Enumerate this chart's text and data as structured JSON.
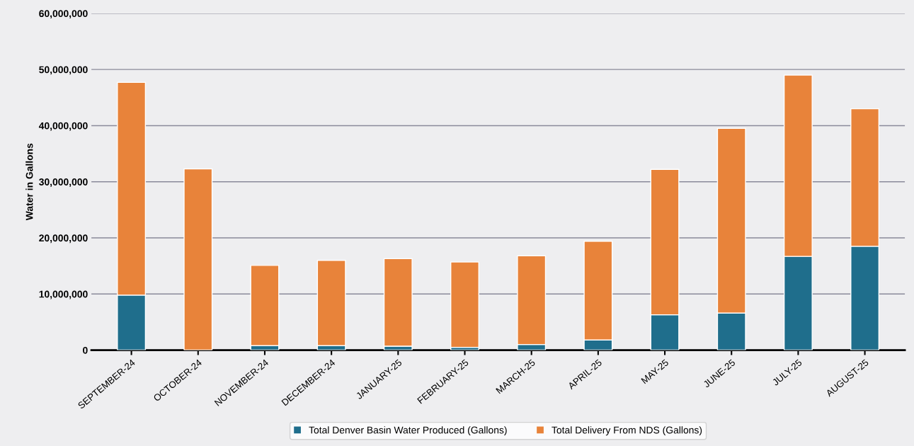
{
  "chart_data": {
    "type": "bar",
    "ylabel": "Water in Gallons",
    "stacked": true,
    "categories": [
      "SEPTEMBER-24",
      "OCTOBER-24",
      "NOVEMBER-24",
      "DECEMBER-24",
      "JANUARY-25",
      "FEBRUARY-25",
      "MARCH-25",
      "APRIL-25",
      "MAY-25",
      "JUNE-25",
      "JULY-25",
      "AUGUST-25"
    ],
    "series": [
      {
        "name": "Total Denver Basin Water Produced (Gallons)",
        "color": "#1f6e8c",
        "values": [
          9800000,
          0,
          800000,
          800000,
          700000,
          500000,
          1000000,
          1800000,
          6300000,
          6600000,
          16700000,
          18500000
        ]
      },
      {
        "name": "Total Delivery From NDS (Gallons)",
        "color": "#e8833a",
        "values": [
          37900000,
          32300000,
          14300000,
          15200000,
          15600000,
          15200000,
          15800000,
          17600000,
          25900000,
          32900000,
          32300000,
          24500000
        ]
      }
    ],
    "ylim": [
      0,
      60000000
    ],
    "yticks": [
      {
        "value": 0,
        "label": "0"
      },
      {
        "value": 10000000,
        "label": "10,000,000"
      },
      {
        "value": 20000000,
        "label": "20,000,000"
      },
      {
        "value": 30000000,
        "label": "30,000,000"
      },
      {
        "value": 40000000,
        "label": "40,000,000"
      },
      {
        "value": 50000000,
        "label": "50,000,000"
      },
      {
        "value": 60000000,
        "label": "60,000,000"
      }
    ],
    "grid": "y",
    "legend": "bottom"
  }
}
